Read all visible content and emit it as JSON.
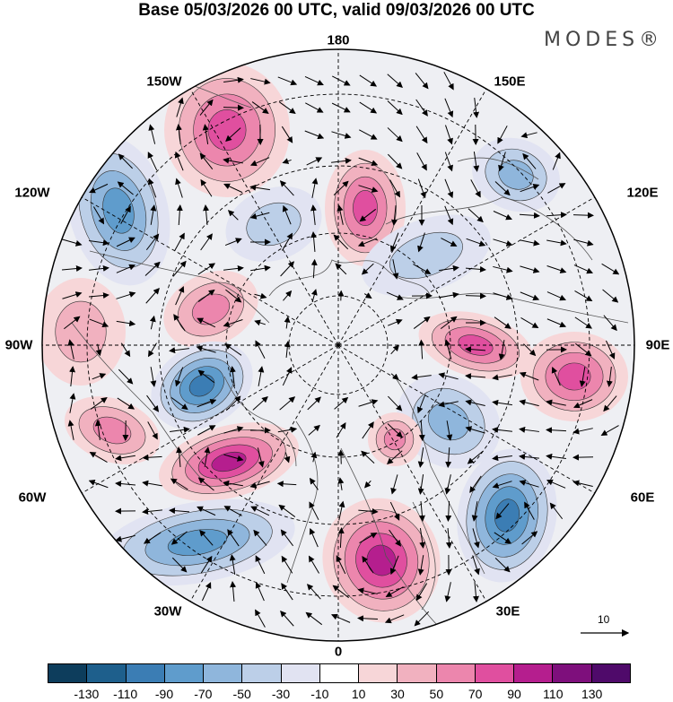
{
  "title": "Base 05/03/2026 00 UTC, valid 09/03/2026 00 UTC",
  "brand": "MODES®",
  "lon_labels": {
    "top": "180",
    "upper_left": "150W",
    "upper_right": "150E",
    "left_upper": "120W",
    "right_upper": "120E",
    "left": "90W",
    "right": "90E",
    "left_lower": "60W",
    "right_lower": "60E",
    "lower_left": "30W",
    "lower_right": "30E",
    "bottom": "0"
  },
  "reference_vector": "10",
  "colorbar": {
    "ticks": [
      "-130",
      "-110",
      "-90",
      "-70",
      "-50",
      "-30",
      "-10",
      "10",
      "30",
      "50",
      "70",
      "90",
      "110",
      "130"
    ],
    "colors": [
      "#0d3d5c",
      "#1e5f8c",
      "#3b7db4",
      "#5f9ccc",
      "#8fb6dc",
      "#bccfe8",
      "#e1e3f2",
      "#ffffff",
      "#f7d6d8",
      "#f1b1bf",
      "#ec86ad",
      "#e04f9f",
      "#b51e8e",
      "#7e0f7c",
      "#4f0a6a"
    ]
  },
  "anomalies": [
    {
      "name": "pos-150w",
      "sign": "positive",
      "peak": 70
    },
    {
      "name": "neg-120w",
      "sign": "negative",
      "peak": -70
    },
    {
      "name": "pos-180",
      "sign": "positive",
      "peak": 70
    },
    {
      "name": "neg-160w",
      "sign": "negative",
      "peak": -30
    },
    {
      "name": "neg-150e",
      "sign": "negative",
      "peak": -50
    },
    {
      "name": "neg-120e",
      "sign": "negative",
      "peak": -30
    },
    {
      "name": "pos-100w",
      "sign": "positive",
      "peak": 50
    },
    {
      "name": "neg-80w",
      "sign": "negative",
      "peak": -90
    },
    {
      "name": "pos-90w",
      "sign": "positive",
      "peak": 30
    },
    {
      "name": "pos-70w",
      "sign": "positive",
      "peak": 50
    },
    {
      "name": "pos-60w",
      "sign": "positive",
      "peak": 90
    },
    {
      "name": "neg-45w",
      "sign": "negative",
      "peak": -70
    },
    {
      "name": "pos-0",
      "sign": "positive",
      "peak": 90
    },
    {
      "name": "neg-50e",
      "sign": "negative",
      "peak": -90
    },
    {
      "name": "neg-60e",
      "sign": "negative",
      "peak": -50
    },
    {
      "name": "pos-85e",
      "sign": "positive",
      "peak": 70
    },
    {
      "name": "pos-100e",
      "sign": "positive",
      "peak": 70
    },
    {
      "name": "pos-20e",
      "sign": "positive",
      "peak": 50
    }
  ]
}
